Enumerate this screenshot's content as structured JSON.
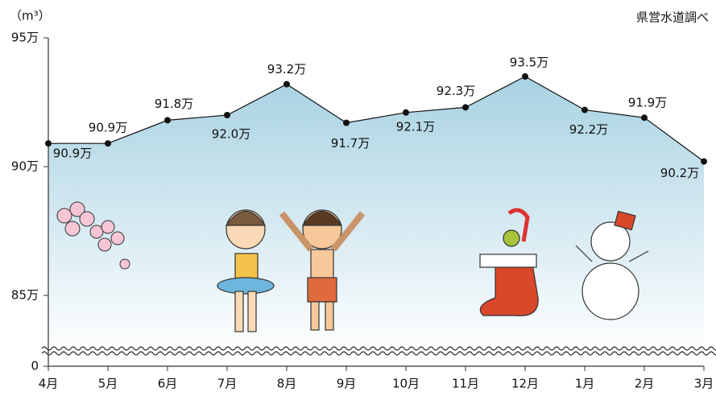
{
  "chart_data": {
    "type": "area",
    "unit_label": "（m³）",
    "source": "県営水道調べ",
    "categories": [
      "4月",
      "5月",
      "6月",
      "7月",
      "8月",
      "9月",
      "10月",
      "11月",
      "12月",
      "1月",
      "2月",
      "3月"
    ],
    "values": [
      90.9,
      90.9,
      91.8,
      92.0,
      93.2,
      91.7,
      92.1,
      92.3,
      93.5,
      92.2,
      91.9,
      90.2
    ],
    "value_labels": [
      "90.9万",
      "90.9万",
      "91.8万",
      "92.0万",
      "93.2万",
      "91.7万",
      "92.1万",
      "92.3万",
      "93.5万",
      "92.2万",
      "91.9万",
      "90.2万"
    ],
    "color": "#111111",
    "fill_color": "#a8d2e2",
    "ylim": [
      83,
      95
    ],
    "yticks": [
      {
        "value": 95,
        "label": "95万"
      },
      {
        "value": 90,
        "label": "90万"
      },
      {
        "value": 85,
        "label": "85万"
      },
      {
        "value": 0,
        "label": "0"
      }
    ],
    "axis_break": true
  }
}
